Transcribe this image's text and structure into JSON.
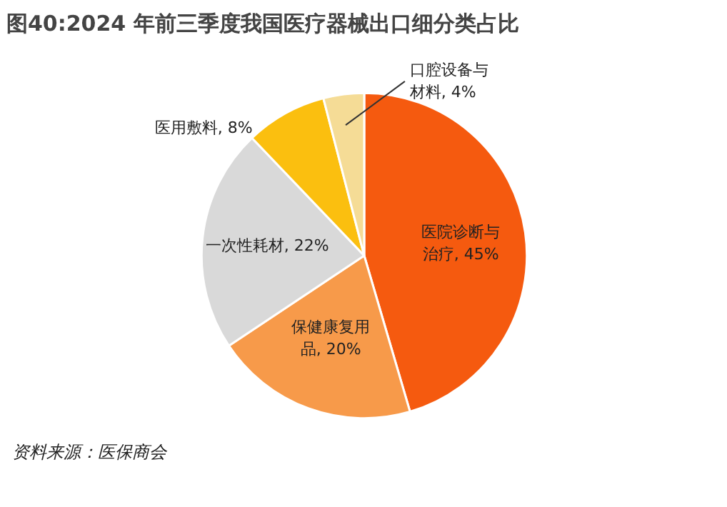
{
  "chart_data": {
    "type": "pie",
    "title": "图40:2024 年前三季度我国医疗器械出口细分类占比",
    "categories": [
      "医院诊断与治疗",
      "保健康复用品",
      "一次性耗材",
      "医用敷料",
      "口腔设备与材料"
    ],
    "values": [
      45,
      20,
      22,
      8,
      4
    ],
    "value_labels": [
      "45%",
      "20%",
      "22%",
      "8%",
      "4%"
    ],
    "colors": [
      "#f55a0f",
      "#f79a4a",
      "#d9d9d9",
      "#fbbf0f",
      "#f5dc96"
    ],
    "annotations": [
      "资料来源：医保商会"
    ]
  }
}
